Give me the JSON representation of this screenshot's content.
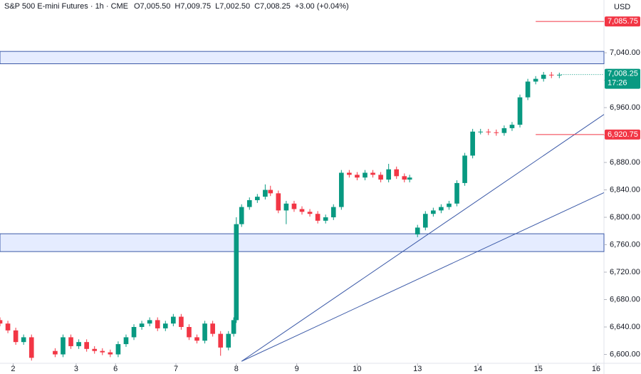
{
  "chart_data": {
    "type": "candlestick",
    "title": "S&P 500 E-mini Futures · 1h · CME",
    "ohlc_labels": [
      "O7,005.50",
      "H7,009.75",
      "L7,002.50",
      "C7,008.25",
      "+3.00 (+0.04%)"
    ],
    "currency": "USD",
    "up_color": "#089981",
    "down_color": "#f23645",
    "xlim": [
      0,
      230
    ],
    "ylim": [
      6587,
      7117
    ],
    "xticks": [
      {
        "value": 5,
        "label": "2"
      },
      {
        "value": 29,
        "label": "3"
      },
      {
        "value": 44,
        "label": "6"
      },
      {
        "value": 67,
        "label": "7"
      },
      {
        "value": 90,
        "label": "8"
      },
      {
        "value": 113,
        "label": "9"
      },
      {
        "value": 136,
        "label": "10"
      },
      {
        "value": 159,
        "label": "13"
      },
      {
        "value": 182,
        "label": "14"
      },
      {
        "value": 205,
        "label": "15"
      },
      {
        "value": 227,
        "label": "16"
      }
    ],
    "yticks": [
      {
        "value": 6600,
        "label": "6,600.00"
      },
      {
        "value": 6640,
        "label": "6,640.00"
      },
      {
        "value": 6680,
        "label": "6,680.00"
      },
      {
        "value": 6720,
        "label": "6,720.00"
      },
      {
        "value": 6760,
        "label": "6,760.00"
      },
      {
        "value": 6800,
        "label": "6,800.00"
      },
      {
        "value": 6840,
        "label": "6,840.00"
      },
      {
        "value": 6880,
        "label": "6,880.00"
      },
      {
        "value": 6920,
        "label": "6,920.00"
      },
      {
        "value": 6960,
        "label": "6,960.00"
      },
      {
        "value": 7000,
        "label": "7,000.00"
      },
      {
        "value": 7040,
        "label": "7,040.00"
      }
    ],
    "x": [
      0,
      3,
      6,
      9,
      12,
      21,
      24,
      27,
      30,
      33,
      36,
      39,
      42,
      45,
      48,
      51,
      54,
      57,
      60,
      63,
      66,
      69,
      72,
      75,
      78,
      81,
      84,
      87,
      89,
      90,
      92,
      95,
      98,
      101,
      103,
      106,
      109,
      112,
      115,
      118,
      121,
      124,
      127,
      130,
      133,
      136,
      139,
      142,
      145,
      148,
      151,
      154,
      156,
      159,
      162,
      165,
      168,
      171,
      174,
      177,
      180,
      183,
      186,
      189,
      192,
      195,
      198,
      201,
      204,
      207,
      210,
      213
    ],
    "open": [
      6650,
      6645,
      6635,
      6618,
      6625,
      6605,
      6600,
      6625,
      6612,
      6618,
      6608,
      6605,
      6603,
      6600,
      6615,
      6625,
      6640,
      6645,
      6650,
      6638,
      6645,
      6655,
      6640,
      6625,
      6620,
      6645,
      6630,
      6610,
      6630,
      6650,
      6790,
      6815,
      6825,
      6830,
      6840,
      6835,
      6810,
      6820,
      6812,
      6808,
      6805,
      6795,
      6800,
      6815,
      6865,
      6862,
      6858,
      6865,
      6862,
      6855,
      6870,
      6860,
      6855,
      6775,
      6785,
      6805,
      6810,
      6815,
      6820,
      6850,
      6890,
      6925,
      6925,
      6924,
      6923,
      6930,
      6935,
      6975,
      6998,
      7002,
      7008,
      7007
    ],
    "high": [
      6654,
      6649,
      6639,
      6629,
      6629,
      6609,
      6629,
      6629,
      6622,
      6622,
      6612,
      6609,
      6607,
      6619,
      6629,
      6644,
      6649,
      6654,
      6654,
      6649,
      6659,
      6659,
      6644,
      6629,
      6649,
      6649,
      6634,
      6634,
      6654,
      6800,
      6819,
      6829,
      6834,
      6848,
      6846,
      6839,
      6824,
      6824,
      6816,
      6812,
      6809,
      6804,
      6819,
      6869,
      6869,
      6866,
      6869,
      6869,
      6866,
      6878,
      6874,
      6864,
      6862,
      6789,
      6809,
      6814,
      6819,
      6824,
      6854,
      6894,
      6929,
      6929,
      6929,
      6928,
      6934,
      6939,
      6979,
      7002,
      7006,
      7012,
      7012,
      7011
    ],
    "low": [
      6641,
      6631,
      6614,
      6614,
      6591,
      6596,
      6596,
      6608,
      6608,
      6604,
      6601,
      6599,
      6596,
      6596,
      6611,
      6621,
      6636,
      6641,
      6634,
      6634,
      6641,
      6636,
      6621,
      6616,
      6616,
      6626,
      6598,
      6606,
      6626,
      6646,
      6786,
      6811,
      6821,
      6826,
      6831,
      6806,
      6790,
      6808,
      6804,
      6801,
      6791,
      6791,
      6796,
      6811,
      6858,
      6854,
      6854,
      6858,
      6851,
      6851,
      6856,
      6851,
      6851,
      6771,
      6781,
      6801,
      6806,
      6811,
      6816,
      6846,
      6886,
      6921,
      6920,
      6919,
      6919,
      6926,
      6931,
      6971,
      6994,
      6998,
      7003,
      7003
    ],
    "close": [
      6645,
      6635,
      6618,
      6625,
      6595,
      6600,
      6625,
      6612,
      6618,
      6608,
      6605,
      6603,
      6600,
      6615,
      6625,
      6640,
      6645,
      6650,
      6638,
      6645,
      6655,
      6640,
      6625,
      6620,
      6645,
      6630,
      6610,
      6630,
      6650,
      6790,
      6815,
      6825,
      6830,
      6840,
      6835,
      6810,
      6820,
      6812,
      6808,
      6805,
      6795,
      6800,
      6815,
      6865,
      6862,
      6858,
      6865,
      6862,
      6855,
      6870,
      6860,
      6855,
      6858,
      6785,
      6805,
      6810,
      6815,
      6820,
      6850,
      6890,
      6925,
      6925,
      6924,
      6923,
      6930,
      6935,
      6975,
      6998,
      7002,
      7008,
      7007,
      7008
    ],
    "zones": [
      {
        "y": [
          7024,
          7042
        ]
      },
      {
        "y": [
          6750,
          6776
        ]
      }
    ],
    "trendlines": [
      {
        "x": [
          92,
          230
        ],
        "y": [
          6590,
          6950
        ]
      },
      {
        "x": [
          92,
          230
        ],
        "y": [
          6590,
          6836
        ]
      }
    ],
    "levels": [
      {
        "value": 7085.75,
        "label": "7,085.75",
        "x": [
          204,
          230
        ]
      },
      {
        "value": 6920.75,
        "label": "6,920.75",
        "x": [
          204,
          230
        ]
      }
    ],
    "last_price": {
      "value": 7008.25,
      "label": "7,008.25",
      "time": "17:26"
    }
  }
}
